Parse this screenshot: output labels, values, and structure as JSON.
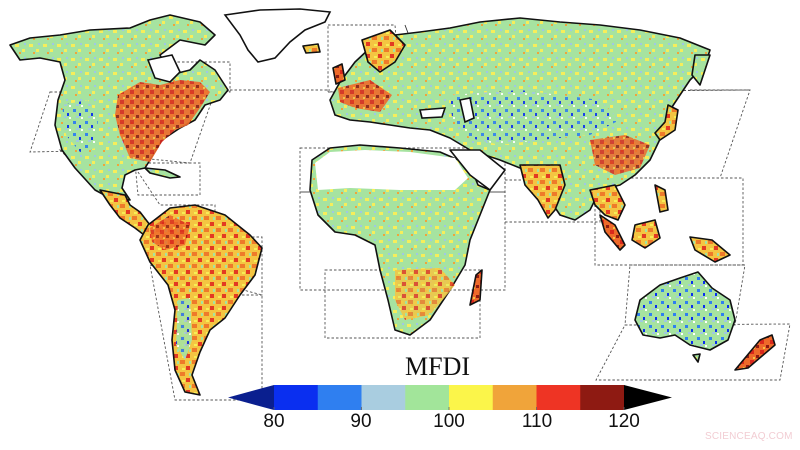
{
  "figure": {
    "type": "global-map",
    "variable": "MFDI",
    "colorbar": {
      "title": "MFDI",
      "ticks": [
        "80",
        "90",
        "100",
        "110",
        "120"
      ],
      "range": [
        80,
        120
      ],
      "step": 5,
      "under_color": "#0a1f8f",
      "over_color": "#000000",
      "segments": [
        {
          "from": 80,
          "to": 85,
          "color": "#0a2ff0"
        },
        {
          "from": 85,
          "to": 90,
          "color": "#2f7ff0"
        },
        {
          "from": 90,
          "to": 95,
          "color": "#a9cde0"
        },
        {
          "from": 95,
          "to": 100,
          "color": "#a2e59a"
        },
        {
          "from": 100,
          "to": 105,
          "color": "#fbf54a"
        },
        {
          "from": 105,
          "to": 110,
          "color": "#f0a43a"
        },
        {
          "from": 110,
          "to": 115,
          "color": "#ee3424"
        },
        {
          "from": 115,
          "to": 120,
          "color": "#8e1a12"
        }
      ]
    },
    "regions_highlighted_high": [
      "Eastern North America",
      "Western Europe",
      "Eastern China",
      "Northern South America",
      "Southeast Asia",
      "New Guinea"
    ],
    "regions_highlighted_low": [
      "Western United States",
      "Central Asia",
      "Australia interior",
      "Sahel"
    ]
  },
  "watermark": "SCIENCEAQ.COM"
}
